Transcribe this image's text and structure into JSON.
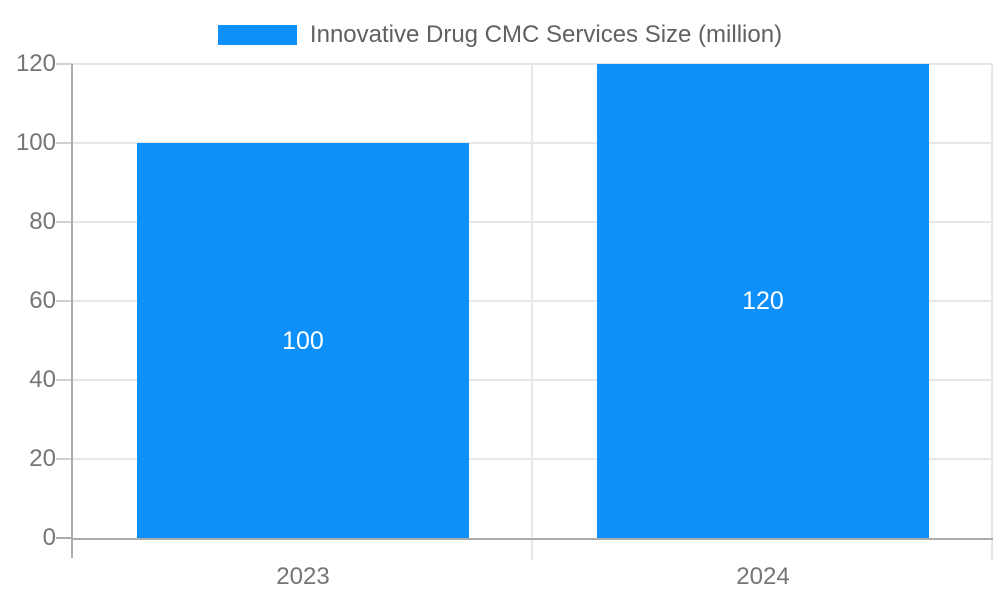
{
  "legend": {
    "label": "Innovative Drug CMC Services Size (million)"
  },
  "chart_data": {
    "type": "bar",
    "title": "",
    "categories": [
      "2023",
      "2024"
    ],
    "series": [
      {
        "name": "Innovative Drug CMC Services Size (million)",
        "values": [
          100,
          120
        ]
      }
    ],
    "bar_value_labels": [
      "100",
      "120"
    ],
    "xlabel": "",
    "ylabel": "",
    "ylim": [
      0,
      120
    ],
    "yticks": [
      0,
      20,
      40,
      60,
      80,
      100,
      120
    ],
    "ytick_labels": [
      "0",
      "20",
      "40",
      "60",
      "80",
      "100",
      "120"
    ],
    "grid": true,
    "legend_position": "top",
    "bar_color": "#0D90F9",
    "bar_width_fraction": 0.72
  },
  "colors": {
    "bar": "#0D90F9",
    "axis_line": "#ababab",
    "gridline": "#e7e7e7",
    "tick": "#d2d2d2",
    "tick_label": "#757575",
    "legend_text": "#616161",
    "bar_label": "#ffffff",
    "background": "#ffffff"
  }
}
